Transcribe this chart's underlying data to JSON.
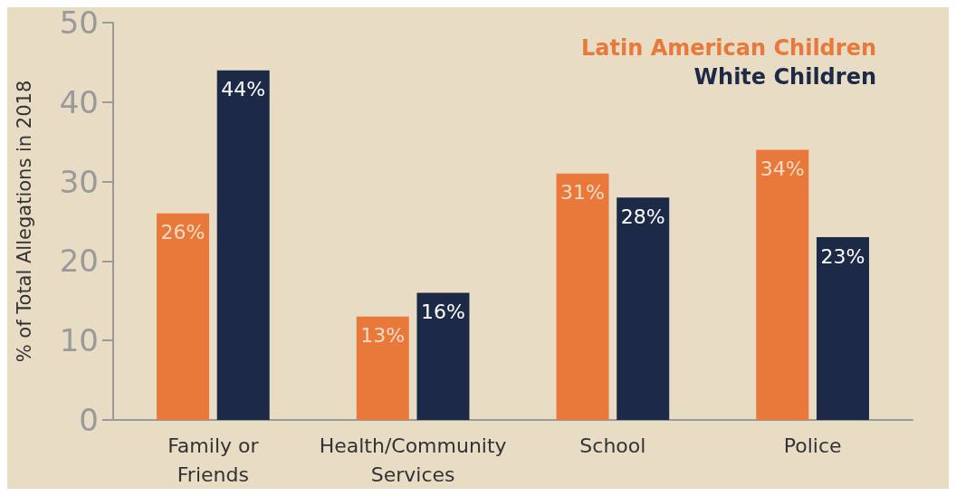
{
  "chart_data": {
    "type": "bar",
    "ylabel": "% of Total Allegations in 2018",
    "categories": [
      "Family or\nFriends",
      "Health/Community\nServices",
      "School",
      "Police"
    ],
    "series": [
      {
        "name": "Latin American Children",
        "color": "#e8793a",
        "values": [
          26,
          13,
          31,
          34
        ],
        "value_labels": [
          "26%",
          "13%",
          "31%",
          "34%"
        ]
      },
      {
        "name": "White Children",
        "color": "#1c2a48",
        "values": [
          44,
          16,
          28,
          23
        ],
        "value_labels": [
          "44%",
          "16%",
          "28%",
          "23%"
        ]
      }
    ],
    "ylim": [
      0,
      50
    ],
    "yticks": [
      0,
      10,
      20,
      30,
      40,
      50
    ],
    "grid": false,
    "legend": "top right"
  }
}
